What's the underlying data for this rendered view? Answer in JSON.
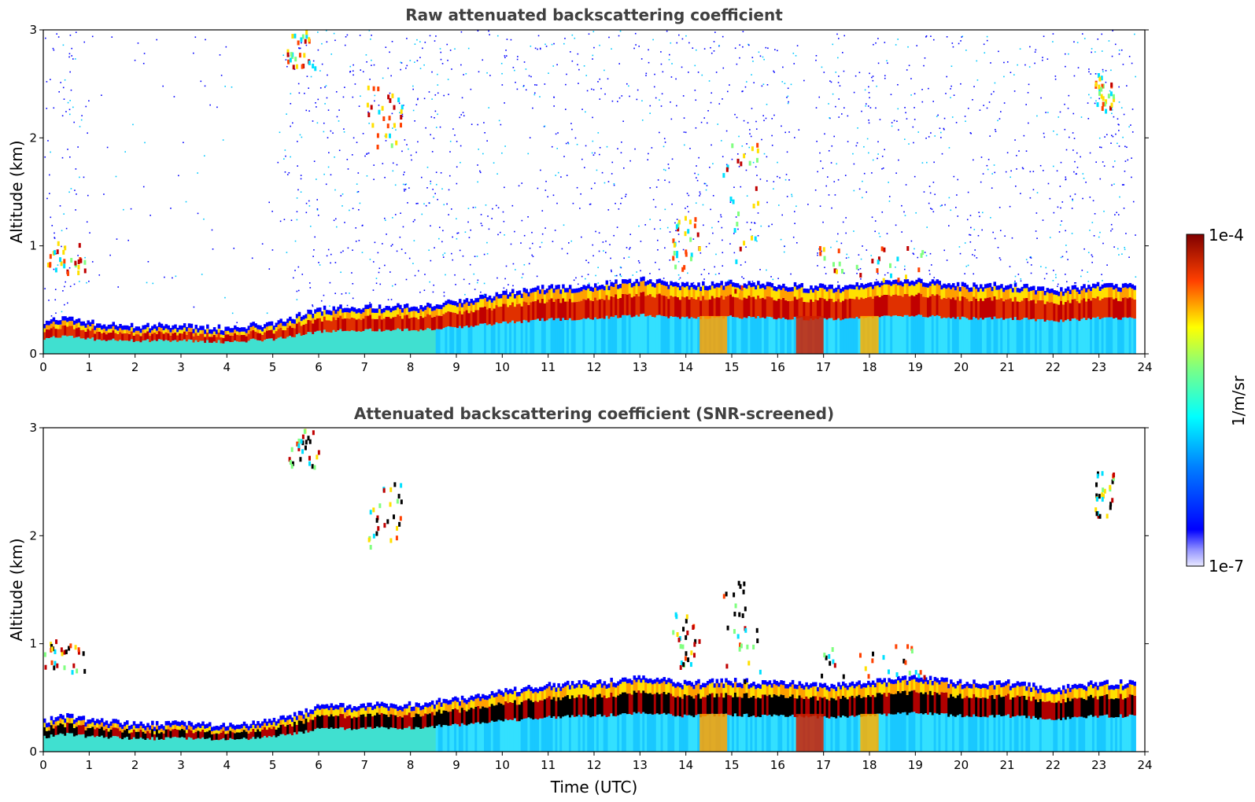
{
  "chart_data": [
    {
      "type": "heatmap",
      "title": "Raw attenuated backscattering coefficient",
      "xlabel": "",
      "ylabel": "Altitude (km)",
      "xlim": [
        0,
        24
      ],
      "ylim": [
        0,
        3
      ],
      "xticks": [
        "0",
        "1",
        "2",
        "3",
        "4",
        "5",
        "6",
        "7",
        "8",
        "9",
        "10",
        "11",
        "12",
        "13",
        "14",
        "15",
        "16",
        "17",
        "18",
        "19",
        "20",
        "21",
        "22",
        "23",
        "24"
      ],
      "yticks": [
        "0",
        "1",
        "2",
        "3"
      ],
      "screened": false,
      "data_end_time": 23.8,
      "layer_top_km": {
        "x": [
          0,
          0.5,
          1,
          2,
          3,
          4,
          5,
          6,
          7,
          8,
          9,
          10,
          11,
          12,
          13,
          14,
          15,
          16,
          17,
          18,
          19,
          20,
          21,
          22,
          23,
          23.8
        ],
        "y": [
          0.25,
          0.3,
          0.25,
          0.22,
          0.22,
          0.2,
          0.25,
          0.38,
          0.4,
          0.4,
          0.45,
          0.52,
          0.58,
          0.6,
          0.65,
          0.6,
          0.62,
          0.6,
          0.58,
          0.62,
          0.65,
          0.6,
          0.6,
          0.55,
          0.6,
          0.6
        ]
      },
      "features": [
        {
          "name": "early cloud",
          "x": [
            0,
            0.9
          ],
          "y": [
            0.75,
            1.05
          ]
        },
        {
          "name": "descending cloud",
          "x": [
            5.3,
            6.0
          ],
          "y": [
            2.65,
            3.0
          ]
        },
        {
          "name": "descending cloud",
          "x": [
            7.0,
            7.8
          ],
          "y": [
            1.9,
            2.5
          ]
        },
        {
          "name": "convective plume",
          "x": [
            13.7,
            14.3
          ],
          "y": [
            0.8,
            1.3
          ]
        },
        {
          "name": "convective plume",
          "x": [
            14.8,
            15.6
          ],
          "y": [
            0.6,
            2.0
          ]
        },
        {
          "name": "cloud",
          "x": [
            16.9,
            19.2
          ],
          "y": [
            0.7,
            1.0
          ]
        },
        {
          "name": "high cloud",
          "x": [
            22.9,
            23.3
          ],
          "y": [
            2.2,
            2.6
          ]
        }
      ]
    },
    {
      "type": "heatmap",
      "title": "Attenuated backscattering coefficient (SNR-screened)",
      "xlabel": "Time (UTC)",
      "ylabel": "Altitude (km)",
      "xlim": [
        0,
        24
      ],
      "ylim": [
        0,
        3
      ],
      "xticks": [
        "0",
        "1",
        "2",
        "3",
        "4",
        "5",
        "6",
        "7",
        "8",
        "9",
        "10",
        "11",
        "12",
        "13",
        "14",
        "15",
        "16",
        "17",
        "18",
        "19",
        "20",
        "21",
        "22",
        "23",
        "24"
      ],
      "yticks": [
        "0",
        "1",
        "2",
        "3"
      ],
      "screened": true,
      "data_end_time": 23.8
    }
  ],
  "colorbar": {
    "label": "1/m/sr",
    "max_label": "1e-4",
    "min_label": "1e-7",
    "colormap": "jet"
  },
  "colors": {
    "title": "#404040",
    "axis": "#000000"
  }
}
